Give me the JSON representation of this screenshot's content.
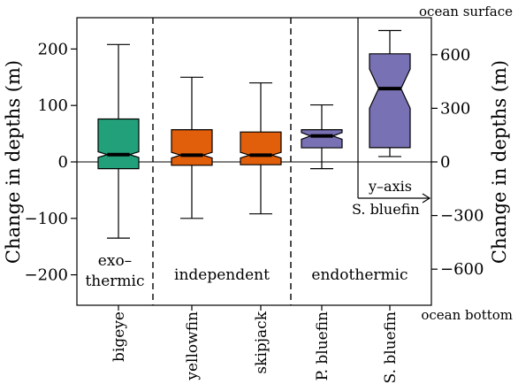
{
  "chart_data": {
    "type": "box",
    "categories": [
      "bigeye",
      "yellowfin",
      "skipjack",
      "P. bluefin",
      "S. bluefin"
    ],
    "ylabel_left": "Change in depths (m)",
    "ylabel_right": "Change in depths (m)",
    "ylim_left": [
      -250,
      255
    ],
    "yticks_left": [
      -200,
      -100,
      0,
      100,
      200
    ],
    "yticks_right": [
      -600,
      -300,
      0,
      300,
      600
    ],
    "right_top_label": "ocean surface",
    "right_bottom_label": "ocean bottom",
    "group_labels": [
      {
        "lines": [
          "exo–",
          "thermic"
        ]
      },
      {
        "lines": [
          "independent"
        ]
      },
      {
        "lines": [
          "endothermic"
        ]
      }
    ],
    "inset_labels": [
      "y–axis",
      "S. bluefin"
    ],
    "colors": {
      "bigeye": "#22a07a",
      "yellowfin": "#e15e0b",
      "skipjack": "#e15e0b",
      "P. bluefin": "#7872b4",
      "S. bluefin": "#7872b4"
    },
    "series": [
      {
        "name": "bigeye",
        "axis": "left",
        "whisker_low": -135,
        "q1": -12,
        "median": 13,
        "q3": 76,
        "whisker_high": 208,
        "notch_low": 8,
        "notch_high": 18
      },
      {
        "name": "yellowfin",
        "axis": "left",
        "whisker_low": -100,
        "q1": -6,
        "median": 12,
        "q3": 57,
        "whisker_high": 150,
        "notch_low": 7,
        "notch_high": 17
      },
      {
        "name": "skipjack",
        "axis": "left",
        "whisker_low": -92,
        "q1": -5,
        "median": 12,
        "q3": 53,
        "whisker_high": 140,
        "notch_low": 7,
        "notch_high": 17
      },
      {
        "name": "P. bluefin",
        "axis": "left",
        "whisker_low": -12,
        "q1": 25,
        "median": 46,
        "q3": 57,
        "whisker_high": 101,
        "notch_low": 40,
        "notch_high": 52
      },
      {
        "name": "S. bluefin",
        "axis": "right",
        "whisker_low": 30,
        "q1": 80,
        "median": 410,
        "q3": 605,
        "whisker_high": 735,
        "notch_low": 300,
        "notch_high": 520
      }
    ]
  }
}
